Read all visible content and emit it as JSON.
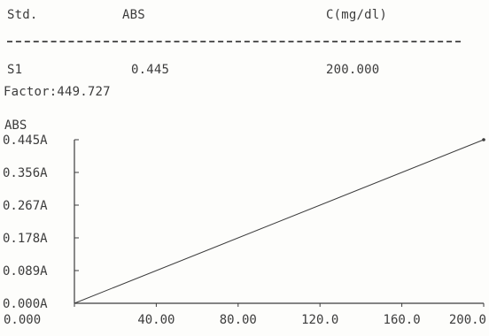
{
  "table": {
    "headers": [
      "Std.",
      "ABS",
      "C(mg/dl)"
    ],
    "rows": [
      {
        "std": "S1",
        "abs": "0.445",
        "conc": "200.000"
      }
    ]
  },
  "factor_label": "Factor:449.727",
  "chart_data": {
    "type": "line",
    "ylabel": "ABS",
    "xlabel": "",
    "x_ticks": [
      "0.000",
      "40.00",
      "80.00",
      "120.0",
      "160.0",
      "200.0"
    ],
    "y_ticks": [
      "0.000A",
      "0.089A",
      "0.178A",
      "0.267A",
      "0.356A",
      "0.445A"
    ],
    "xlim": [
      0,
      200
    ],
    "ylim": [
      0,
      0.445
    ],
    "series": [
      {
        "x": [
          0,
          200
        ],
        "y": [
          0,
          0.445
        ]
      }
    ],
    "points": [
      {
        "x": 200,
        "y": 0.445
      }
    ],
    "grid": false
  },
  "colors": {
    "ink": "#3c3c3c",
    "background": "#fdfdfb"
  }
}
